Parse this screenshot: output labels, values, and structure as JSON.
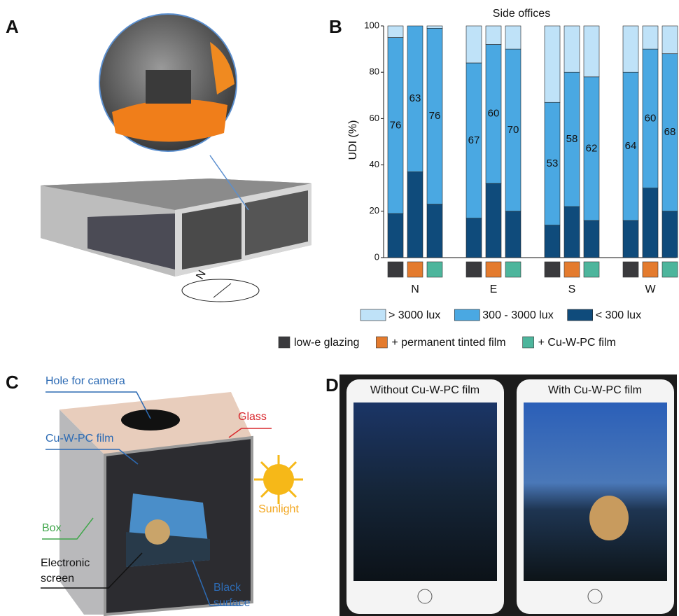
{
  "panel_labels": [
    "A",
    "B",
    "C",
    "D"
  ],
  "panel_a": {
    "compass": "N"
  },
  "chart_data": {
    "type": "bar",
    "stacked": true,
    "title": "Side offices",
    "ylabel": "UDI (%)",
    "categories": [
      "N",
      "E",
      "S",
      "W"
    ],
    "ylim": [
      0,
      100
    ],
    "yticks": [
      0,
      20,
      40,
      60,
      80,
      100
    ],
    "bars": [
      {
        "name": "low-e glazing",
        "color": "#3a3a3d"
      },
      {
        "name": "+ permanent tinted film",
        "color": "#e47b2e"
      },
      {
        "name": "+ Cu-W-PC film",
        "color": "#4db59c"
      }
    ],
    "series": [
      {
        "name": "> 3000 lux",
        "color": "#bfe2f8",
        "values": [
          [
            5,
            0,
            1
          ],
          [
            16,
            8,
            10
          ],
          [
            33,
            20,
            22
          ],
          [
            20,
            10,
            12
          ]
        ]
      },
      {
        "name": "300 - 3000 lux",
        "color": "#4aa8e2",
        "values": [
          [
            76,
            63,
            76
          ],
          [
            67,
            60,
            70
          ],
          [
            53,
            58,
            62
          ],
          [
            64,
            60,
            68
          ]
        ],
        "labels": true
      },
      {
        "name": "< 300 lux",
        "color": "#0f4b7b",
        "values": [
          [
            19,
            37,
            23
          ],
          [
            17,
            32,
            20
          ],
          [
            14,
            22,
            16
          ],
          [
            16,
            30,
            20
          ]
        ]
      }
    ]
  },
  "panel_c": {
    "hole": "Hole for camera",
    "glass": "Glass",
    "film": "Cu-W-PC film",
    "sunlight": "Sunlight",
    "box": "Box",
    "screen": [
      "Electronic",
      "screen"
    ],
    "black": [
      "Black",
      "surface"
    ]
  },
  "panel_d": {
    "left": "Without Cu-W-PC film",
    "right": "With Cu-W-PC film"
  }
}
